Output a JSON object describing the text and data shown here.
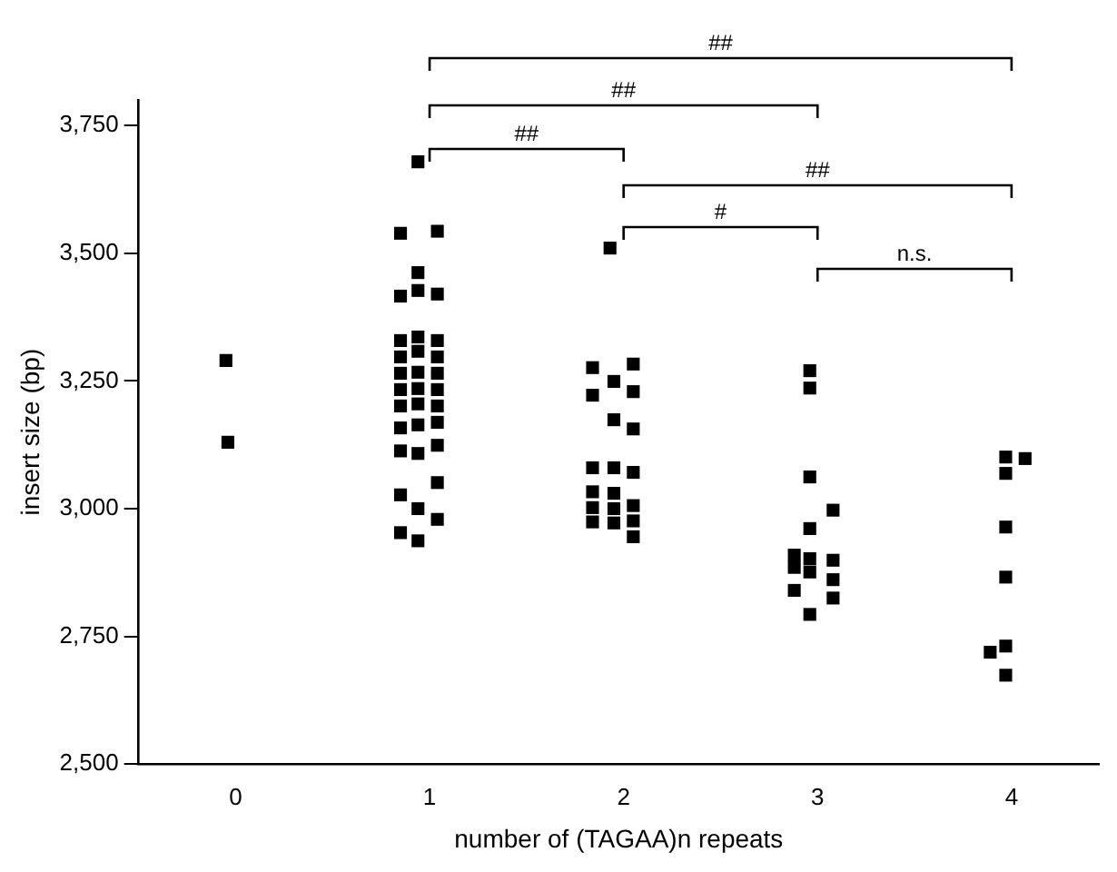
{
  "chart_data": {
    "type": "scatter",
    "xlabel": "number of (TAGAA)n repeats",
    "ylabel": "insert size (bp)",
    "xlim": [
      -0.5,
      4.45
    ],
    "xticks": [
      0,
      1,
      2,
      3,
      4
    ],
    "ylim": [
      2500,
      3800
    ],
    "yticks": [
      {
        "value": 2500,
        "label": "2,500"
      },
      {
        "value": 2750,
        "label": "2,750"
      },
      {
        "value": 3000,
        "label": "3,000"
      },
      {
        "value": 3250,
        "label": "3,250"
      },
      {
        "value": 3500,
        "label": "3,500"
      },
      {
        "value": 3750,
        "label": "3,750"
      }
    ],
    "grid": false,
    "legend": false,
    "marker": "square",
    "series": [
      {
        "color": "#000000",
        "x": [
          -0.05,
          -0.04,
          0.94,
          0.85,
          1.04,
          0.94,
          0.94,
          0.85,
          1.04,
          0.85,
          0.85,
          0.85,
          0.85,
          0.85,
          0.85,
          0.85,
          0.85,
          0.85,
          0.94,
          0.94,
          0.94,
          0.94,
          0.94,
          0.94,
          0.94,
          0.94,
          0.94,
          1.04,
          1.04,
          1.04,
          1.04,
          1.04,
          1.04,
          1.04,
          1.04,
          1.04,
          1.93,
          1.84,
          2.05,
          1.95,
          1.84,
          2.05,
          1.95,
          2.05,
          1.84,
          1.95,
          2.05,
          1.84,
          1.84,
          1.84,
          1.95,
          1.95,
          1.95,
          2.05,
          2.05,
          2.05,
          2.96,
          2.96,
          2.96,
          3.08,
          2.96,
          2.88,
          2.88,
          2.96,
          2.96,
          3.08,
          3.08,
          3.08,
          2.88,
          2.96,
          3.97,
          4.07,
          3.97,
          3.97,
          3.97,
          3.89,
          3.97,
          3.97
        ],
        "values": [
          3290,
          3130,
          3679,
          3539,
          3543,
          3462,
          3427,
          3416,
          3420,
          3329,
          3297,
          3265,
          3233,
          3201,
          3158,
          3113,
          3027,
          2953,
          3336,
          3308,
          3267,
          3235,
          3205,
          3164,
          3108,
          3000,
          2937,
          3329,
          3297,
          3265,
          3233,
          3201,
          3169,
          3124,
          3051,
          2979,
          3510,
          3276,
          3283,
          3249,
          3222,
          3229,
          3174,
          3156,
          3080,
          3080,
          3071,
          3033,
          3002,
          2974,
          3030,
          3000,
          2972,
          3006,
          2976,
          2945,
          3270,
          3236,
          3062,
          2997,
          2961,
          2909,
          2885,
          2902,
          2876,
          2899,
          2861,
          2825,
          2840,
          2793,
          3101,
          3098,
          3069,
          2964,
          2866,
          2719,
          2731,
          2674
        ]
      }
    ],
    "annotations": [
      "##",
      "##",
      "##",
      "##",
      "#",
      "n.s."
    ]
  }
}
